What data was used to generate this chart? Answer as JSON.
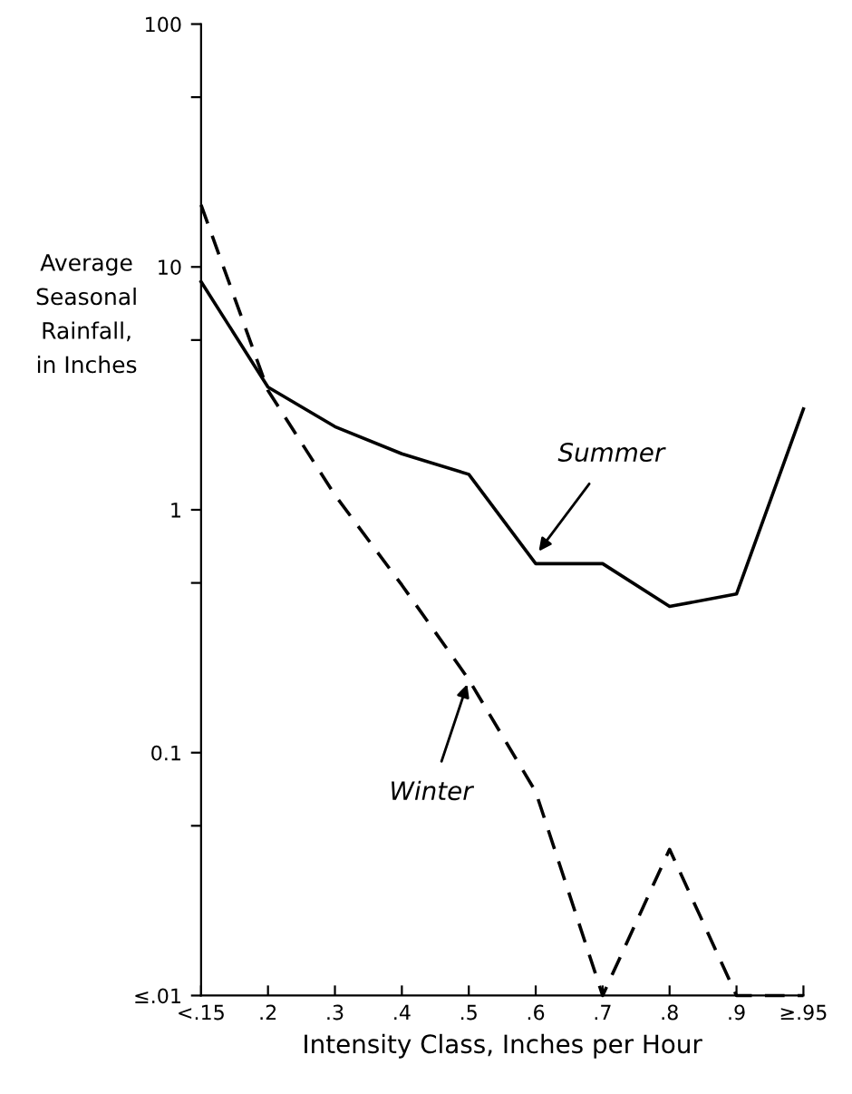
{
  "chart_data": {
    "type": "line",
    "xlabel": "Intensity Class, Inches per Hour",
    "ylabel": "Average\nSeasonal\nRainfall,\nin Inches",
    "categories": [
      "<.15",
      ".2",
      ".3",
      ".4",
      ".5",
      ".6",
      ".7",
      ".8",
      ".9",
      "≥.95"
    ],
    "series": [
      {
        "color": "#000000",
        "line_style": "solid",
        "values": [
          8.7,
          3.2,
          2.2,
          1.7,
          1.4,
          0.6,
          0.6,
          0.4,
          0.45,
          2.6
        ]
      },
      {
        "color": "#000000",
        "line_style": "dashed",
        "values": [
          18,
          3.1,
          1.15,
          0.49,
          0.2,
          0.069,
          0.01,
          0.04,
          0.01,
          0.01
        ]
      }
    ],
    "log": "y",
    "ylim": [
      0.01,
      100
    ],
    "yticks": [
      {
        "value": 0.01,
        "label": "≤.01"
      },
      {
        "value": 0.05,
        "label": null
      },
      {
        "value": 0.1,
        "label": "0.1"
      },
      {
        "value": 0.5,
        "label": null
      },
      1,
      {
        "value": 5,
        "label": null
      },
      10,
      {
        "value": 50,
        "label": null
      },
      100
    ],
    "annotations": [
      {
        "text": "Summer",
        "x": ".6",
        "y": 0.65
      },
      {
        "text": "Winter",
        "x": ".5",
        "y": 0.2
      }
    ],
    "marker": "none",
    "grid": false,
    "legend": false
  }
}
